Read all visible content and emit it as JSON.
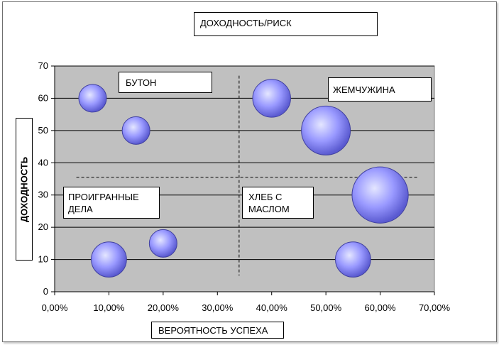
{
  "chart_data": {
    "type": "bubble",
    "title": "ДОХОДНОСТЬ/РИСК",
    "xlabel": "ВЕРОЯТНОСТЬ УСПЕХА",
    "ylabel": "ДОХОДНОСТЬ",
    "xlim": [
      0,
      0.7
    ],
    "ylim": [
      0,
      70
    ],
    "x_ticks": [
      "0,00%",
      "10,00%",
      "20,00%",
      "30,00%",
      "40,00%",
      "50,00%",
      "60,00%",
      "70,00%"
    ],
    "y_ticks": [
      "0",
      "10",
      "20",
      "30",
      "40",
      "50",
      "60",
      "70"
    ],
    "grid": true,
    "bubbles": [
      {
        "x": 0.07,
        "y": 60,
        "size": 1.6
      },
      {
        "x": 0.15,
        "y": 50,
        "size": 1.6
      },
      {
        "x": 0.2,
        "y": 15,
        "size": 1.6
      },
      {
        "x": 0.1,
        "y": 10,
        "size": 2.6
      },
      {
        "x": 0.4,
        "y": 60,
        "size": 3.0
      },
      {
        "x": 0.5,
        "y": 50,
        "size": 5.0
      },
      {
        "x": 0.6,
        "y": 30,
        "size": 6.6
      },
      {
        "x": 0.55,
        "y": 10,
        "size": 2.6
      }
    ],
    "divider_x": 0.34,
    "divider_y": 35.5,
    "quadrant_labels": {
      "top_left": "БУТОН",
      "top_right": "ЖЕМЧУЖИНА",
      "bottom_left": "ПРОИГРАННЫЕ ДЕЛА",
      "bottom_right": "ХЛЕБ С МАСЛОМ"
    },
    "plot_color": "#c0c0c0",
    "bubble_color": "#9999ff"
  }
}
